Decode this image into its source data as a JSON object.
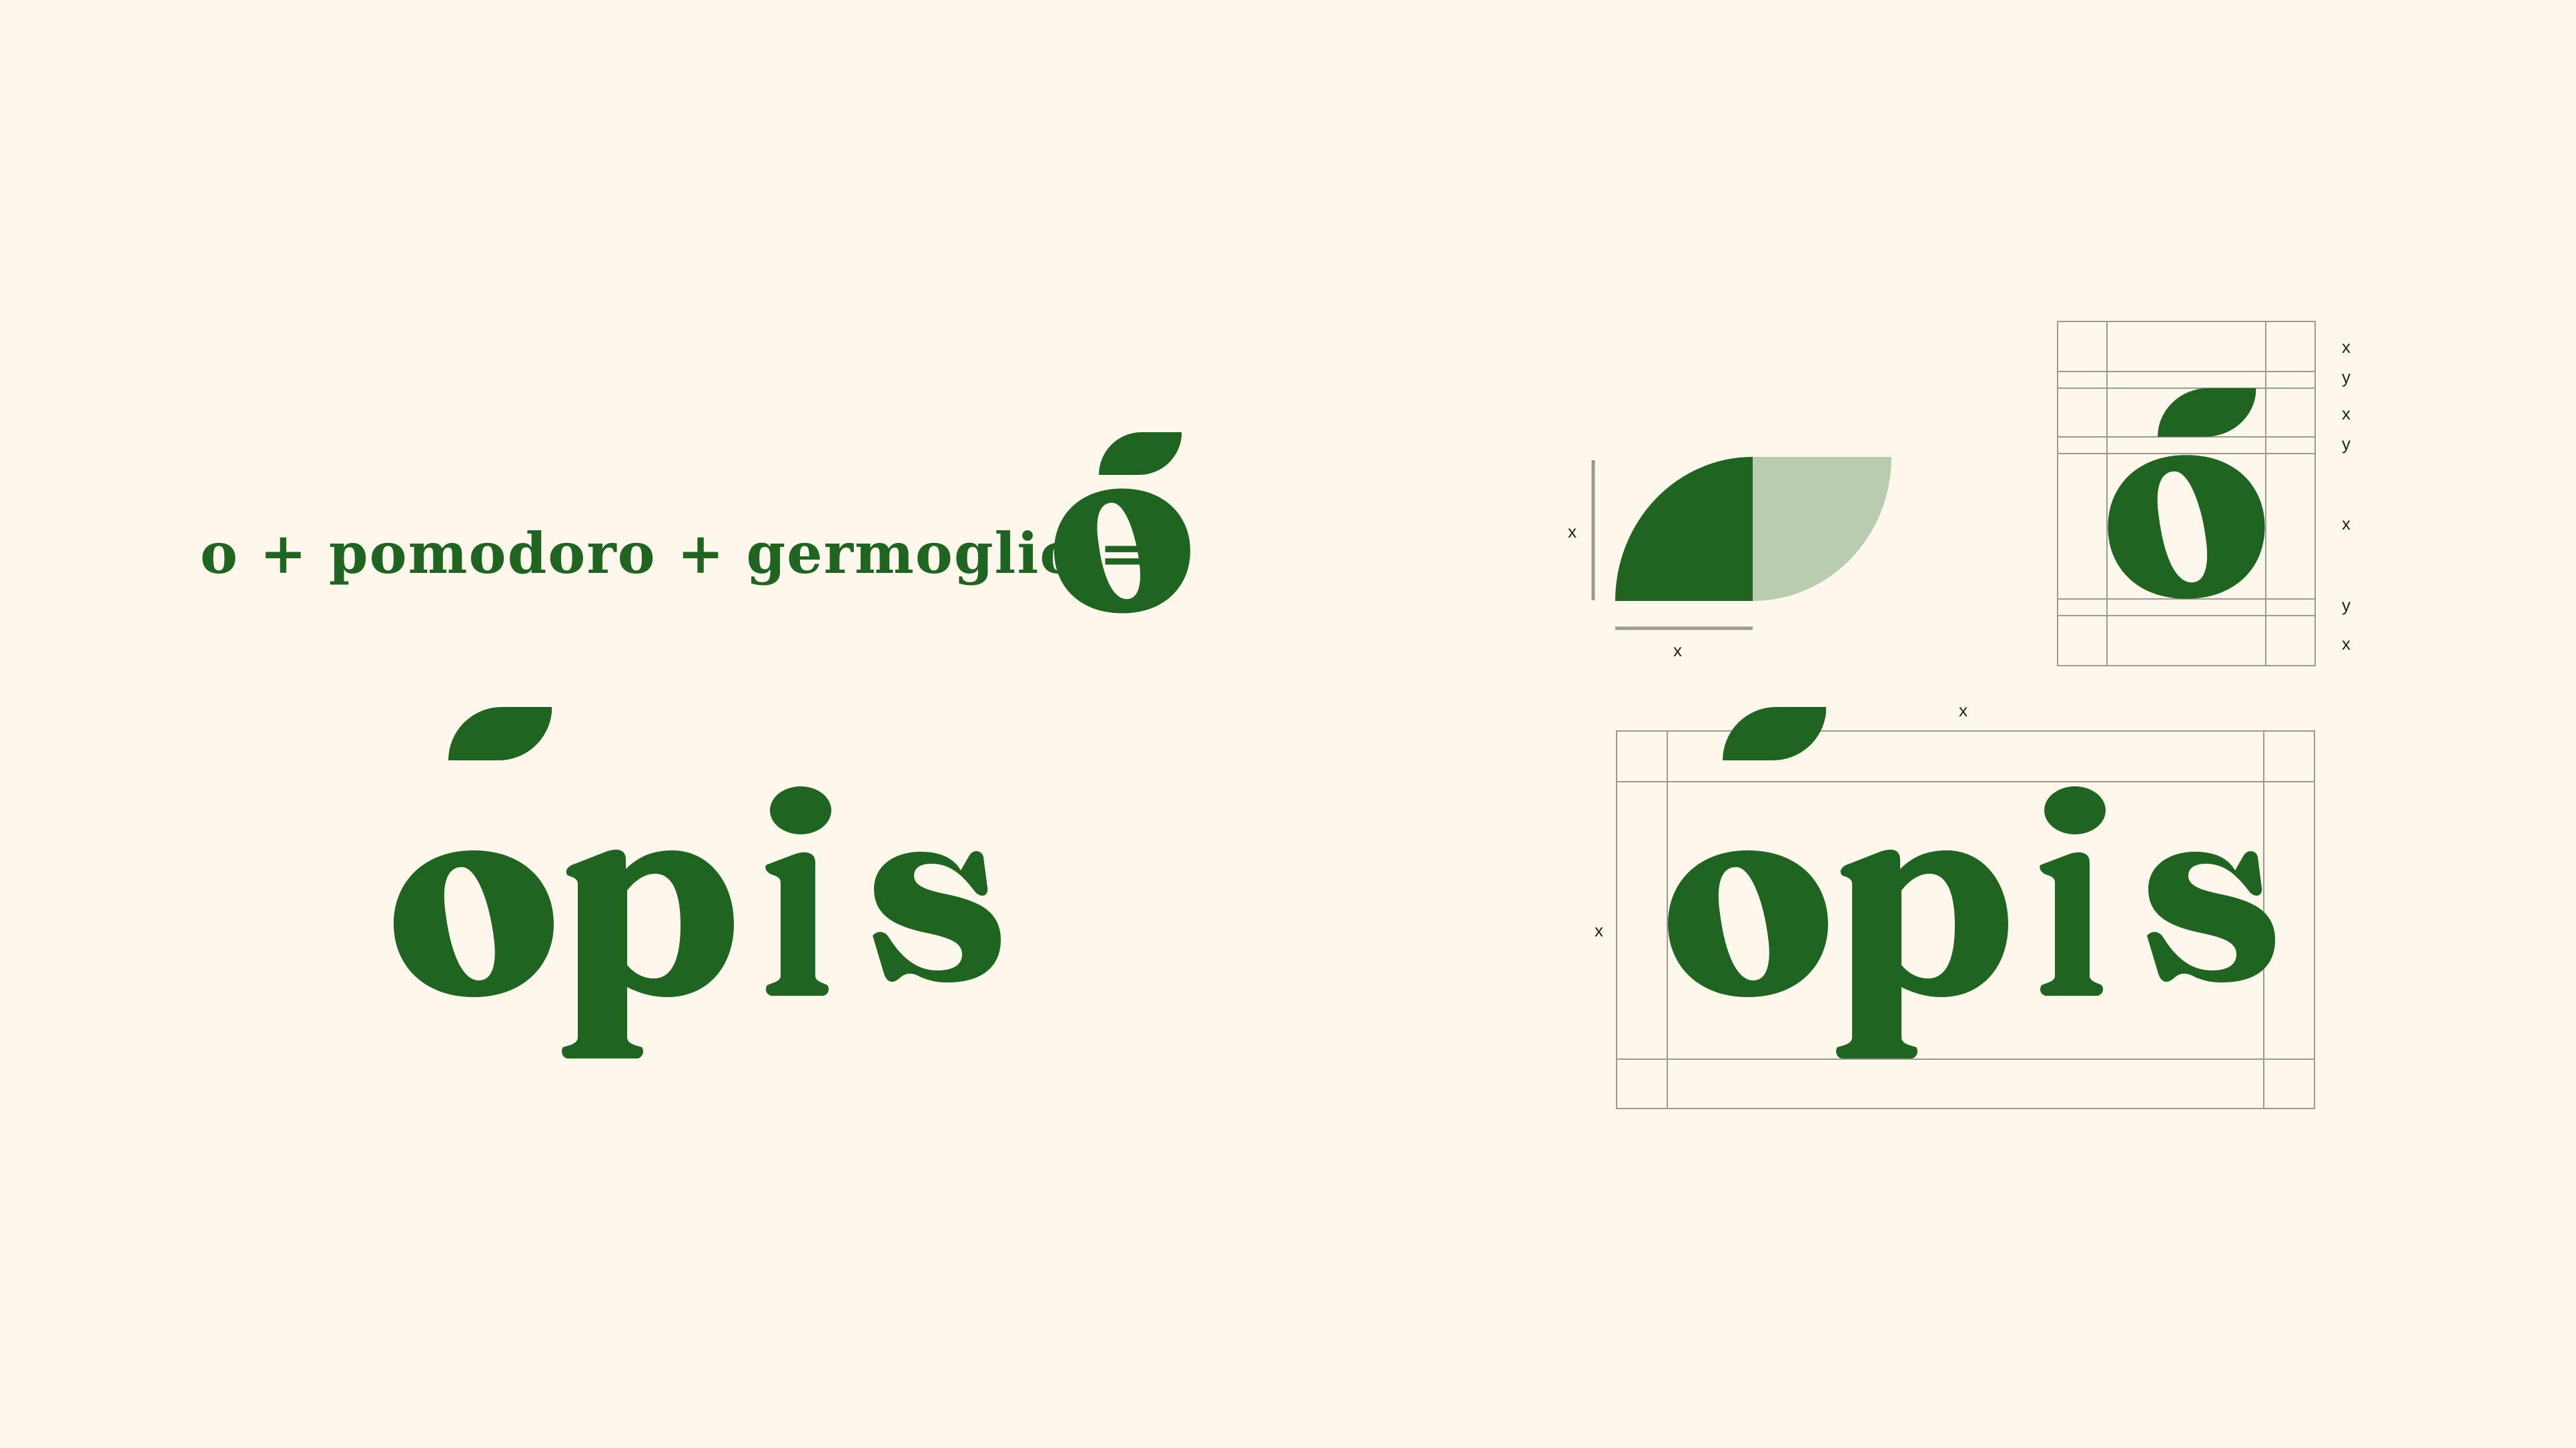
{
  "colors": {
    "background": "#FEF7EC",
    "brand_green": "#1F6420",
    "light_green": "#BACCAF",
    "guide_grey": "#9A9A92"
  },
  "formula": {
    "text": "o + pomodoro + germoglio ="
  },
  "logo": {
    "wordmark": "ōpis"
  },
  "construction": {
    "leaf_height_label": "x",
    "leaf_width_label": "x",
    "grid_labels": [
      "x",
      "y",
      "x",
      "y",
      "x",
      "y",
      "x"
    ],
    "wordmark_top_label": "x",
    "wordmark_side_label": "x"
  }
}
